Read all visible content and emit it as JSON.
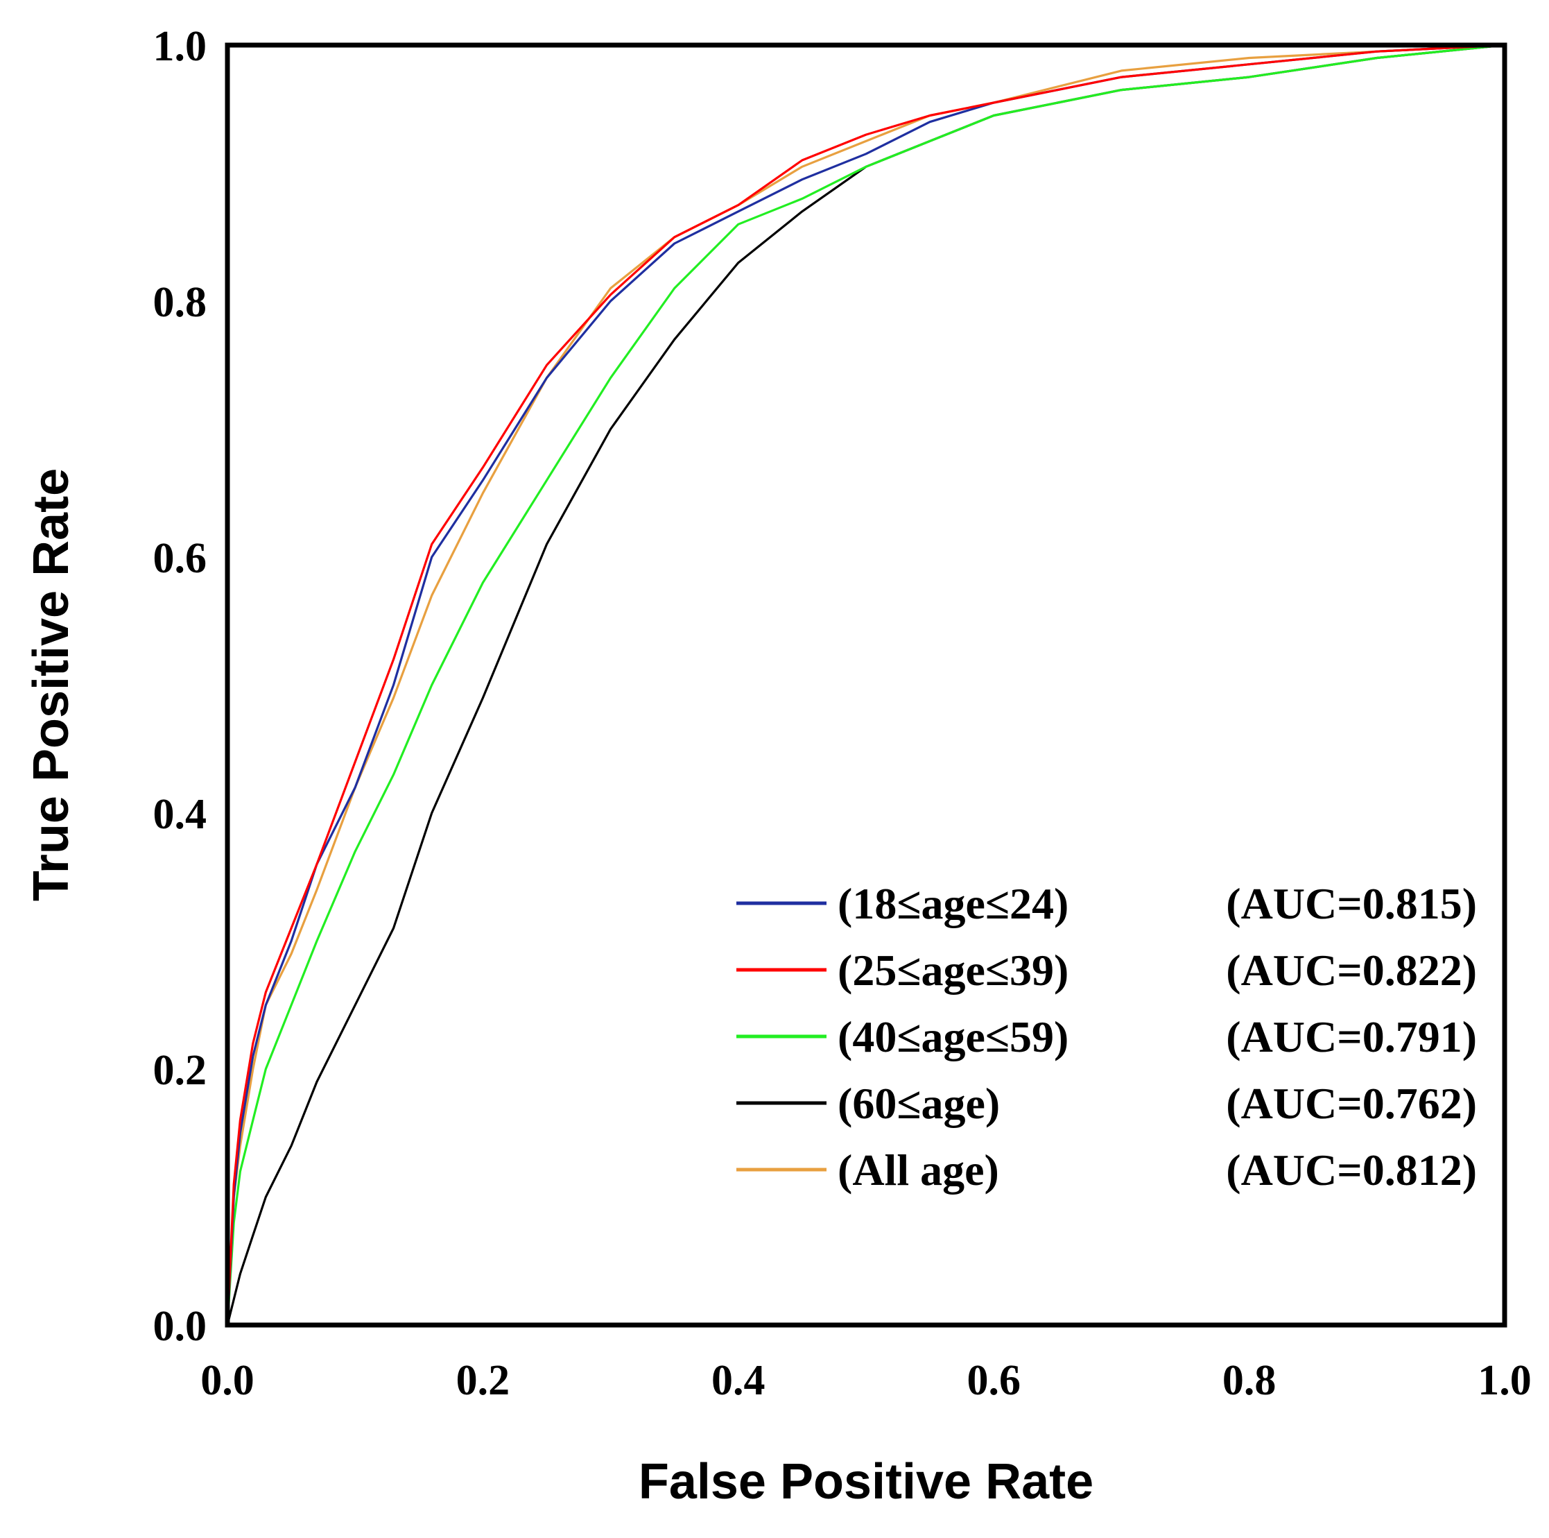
{
  "chart_data": {
    "type": "line",
    "title": "",
    "xlabel": "False Positive Rate",
    "ylabel": "True Positive Rate",
    "xlim": [
      0,
      1
    ],
    "ylim": [
      0,
      1
    ],
    "xticks": [
      "0.0",
      "0.2",
      "0.4",
      "0.6",
      "0.8",
      "1.0"
    ],
    "yticks": [
      "0.0",
      "0.2",
      "0.4",
      "0.6",
      "0.8",
      "1.0"
    ],
    "grid": false,
    "legend_position": "bottom-right",
    "series": [
      {
        "name": "(18≤age≤24)",
        "auc_label": "(AUC=0.815)",
        "color": "#1f2fa0",
        "x": [
          0,
          0.005,
          0.01,
          0.02,
          0.03,
          0.05,
          0.07,
          0.1,
          0.13,
          0.16,
          0.2,
          0.25,
          0.3,
          0.35,
          0.4,
          0.45,
          0.5,
          0.55,
          0.6,
          0.7,
          0.8,
          0.9,
          1.0
        ],
        "y": [
          0,
          0.1,
          0.15,
          0.21,
          0.25,
          0.3,
          0.36,
          0.42,
          0.5,
          0.6,
          0.66,
          0.74,
          0.8,
          0.845,
          0.87,
          0.895,
          0.915,
          0.94,
          0.955,
          0.975,
          0.985,
          0.995,
          1.0
        ]
      },
      {
        "name": "(25≤age≤39)",
        "auc_label": "(AUC=0.822)",
        "color": "#ff0000",
        "x": [
          0,
          0.005,
          0.01,
          0.02,
          0.03,
          0.05,
          0.07,
          0.1,
          0.13,
          0.16,
          0.2,
          0.25,
          0.3,
          0.35,
          0.4,
          0.45,
          0.5,
          0.55,
          0.6,
          0.7,
          0.8,
          0.9,
          1.0
        ],
        "y": [
          0,
          0.11,
          0.16,
          0.22,
          0.26,
          0.31,
          0.36,
          0.44,
          0.52,
          0.61,
          0.67,
          0.75,
          0.805,
          0.85,
          0.875,
          0.91,
          0.93,
          0.945,
          0.955,
          0.975,
          0.985,
          0.995,
          1.0
        ]
      },
      {
        "name": "(40≤age≤59)",
        "auc_label": "(AUC=0.791)",
        "color": "#22ee22",
        "x": [
          0,
          0.005,
          0.01,
          0.02,
          0.03,
          0.05,
          0.07,
          0.1,
          0.13,
          0.16,
          0.2,
          0.25,
          0.3,
          0.35,
          0.4,
          0.45,
          0.5,
          0.55,
          0.6,
          0.7,
          0.8,
          0.9,
          1.0
        ],
        "y": [
          0,
          0.08,
          0.12,
          0.16,
          0.2,
          0.25,
          0.3,
          0.37,
          0.43,
          0.5,
          0.58,
          0.66,
          0.74,
          0.81,
          0.86,
          0.88,
          0.905,
          0.925,
          0.945,
          0.965,
          0.975,
          0.99,
          1.0
        ]
      },
      {
        "name": "(60≤age)",
        "auc_label": "(AUC=0.762)",
        "color": "#000000",
        "x": [
          0,
          0.005,
          0.01,
          0.02,
          0.03,
          0.05,
          0.07,
          0.1,
          0.13,
          0.16,
          0.2,
          0.25,
          0.3,
          0.35,
          0.4,
          0.45,
          0.5,
          0.55,
          0.6,
          0.7,
          0.8,
          0.9,
          1.0
        ],
        "y": [
          0,
          0.02,
          0.04,
          0.07,
          0.1,
          0.14,
          0.19,
          0.25,
          0.31,
          0.4,
          0.49,
          0.61,
          0.7,
          0.77,
          0.83,
          0.87,
          0.905,
          0.925,
          0.945,
          0.965,
          0.975,
          0.99,
          1.0
        ]
      },
      {
        "name": "(All age)",
        "auc_label": "(AUC=0.812)",
        "color": "#e8a040",
        "x": [
          0,
          0.005,
          0.01,
          0.02,
          0.03,
          0.05,
          0.07,
          0.1,
          0.13,
          0.16,
          0.2,
          0.25,
          0.3,
          0.35,
          0.4,
          0.45,
          0.5,
          0.55,
          0.6,
          0.7,
          0.8,
          0.9,
          1.0
        ],
        "y": [
          0,
          0.1,
          0.14,
          0.2,
          0.25,
          0.29,
          0.34,
          0.42,
          0.49,
          0.57,
          0.65,
          0.74,
          0.81,
          0.85,
          0.875,
          0.905,
          0.925,
          0.945,
          0.955,
          0.98,
          0.99,
          0.995,
          1.0
        ]
      }
    ]
  }
}
